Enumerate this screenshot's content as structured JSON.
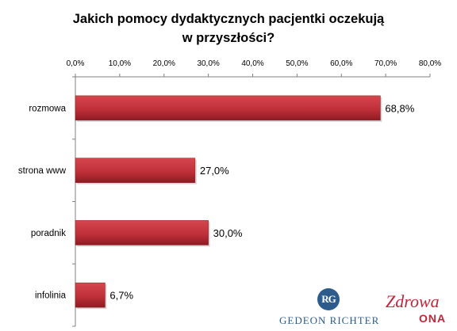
{
  "chart_data": {
    "type": "bar",
    "orientation": "horizontal",
    "title_lines": [
      "Jakich pomocy dydaktycznych pacjentki oczekują",
      "w przyszłości?"
    ],
    "categories": [
      "rozmowa",
      "strona www",
      "poradnik",
      "infolinia"
    ],
    "values": [
      68.8,
      27.0,
      30.0,
      6.7
    ],
    "value_labels": [
      "68,8%",
      "27,0%",
      "30,0%",
      "6,7%"
    ],
    "x_ticks": [
      "0,0%",
      "10,0%",
      "20,0%",
      "30,0%",
      "40,0%",
      "50,0%",
      "60,0%",
      "70,0%",
      "80,0%"
    ],
    "xlim": [
      0,
      80
    ],
    "x_axis_position": "top",
    "grid": false,
    "legend": "none",
    "colors": {
      "bar_fill": "#c0303a",
      "bar_dark": "#8e1b22",
      "axis": "#808080"
    }
  },
  "logos": {
    "richter_mark": "RG",
    "richter_text": "GEDEON RICHTER",
    "zdrowa_text": "Zdrowa",
    "ona_text": "ONA"
  }
}
